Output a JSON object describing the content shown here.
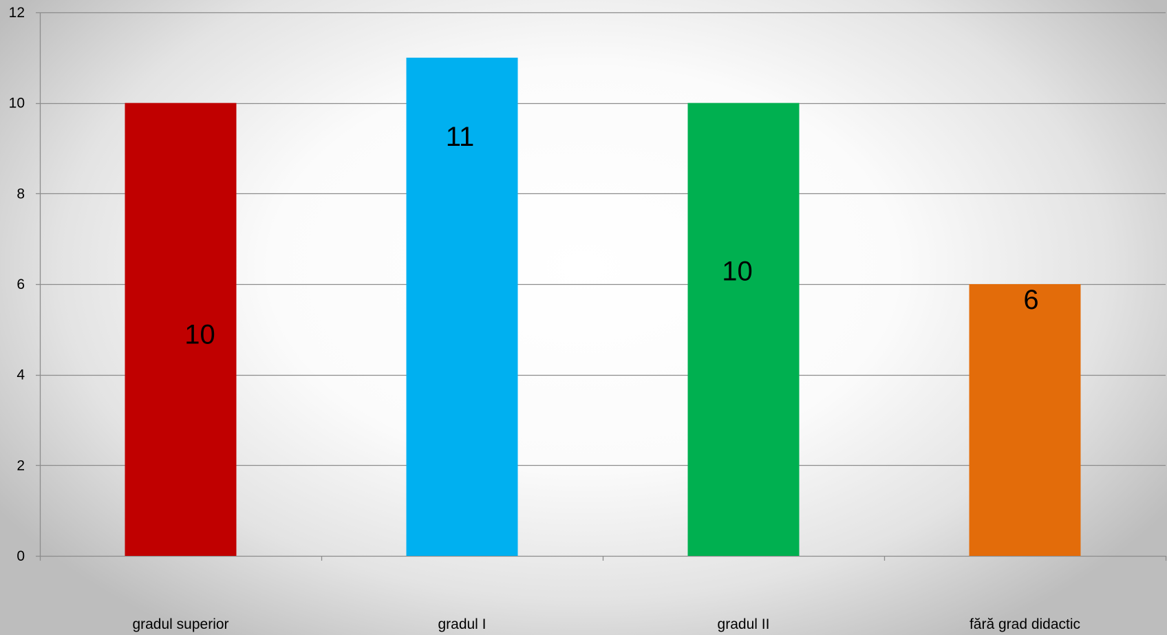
{
  "chart_data": {
    "type": "bar",
    "categories": [
      "gradul superior",
      "gradul I",
      "gradul II",
      "fără grad didactic"
    ],
    "values": [
      10,
      11,
      10,
      6
    ],
    "data_labels": [
      "10",
      "11",
      "10",
      "6"
    ],
    "colors": [
      "#c00000",
      "#00b0f0",
      "#00b050",
      "#e36c0a"
    ],
    "ylim": [
      0,
      12
    ],
    "yticks": [
      0,
      2,
      4,
      6,
      8,
      10,
      12
    ],
    "ytick_labels": [
      "0",
      "2",
      "4",
      "6",
      "8",
      "10",
      "12"
    ],
    "grid": true,
    "legend": "none",
    "title": "",
    "xlabel": "",
    "ylabel": ""
  }
}
